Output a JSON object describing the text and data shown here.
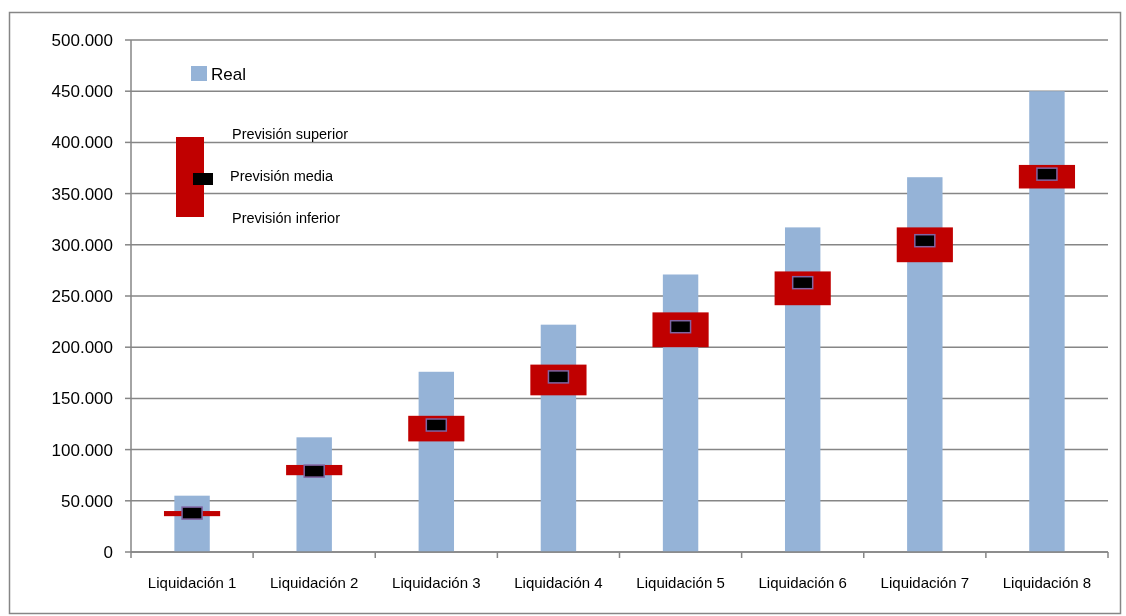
{
  "chart_data": {
    "type": "bar",
    "categories": [
      "Liquidación 1",
      "Liquidación 2",
      "Liquidación 3",
      "Liquidación 4",
      "Liquidación 5",
      "Liquidación 6",
      "Liquidación 7",
      "Liquidación 8"
    ],
    "series": [
      {
        "name": "Real",
        "color": "#95b3d7",
        "values": [
          55000,
          112000,
          176000,
          222000,
          271000,
          317000,
          366000,
          450000
        ]
      },
      {
        "color": "#c00000",
        "base": [
          35000,
          75000,
          108000,
          153000,
          200000,
          241000,
          283000,
          355000
        ],
        "values": [
          5000,
          10000,
          25000,
          30000,
          34000,
          33000,
          34000,
          23000
        ]
      },
      {
        "name": "Previsión media",
        "type": "scatter",
        "color": "#000000",
        "marker": "square",
        "values": [
          38000,
          79000,
          124000,
          171000,
          220000,
          263000,
          304000,
          369000
        ]
      }
    ],
    "ylim": [
      0,
      500000
    ],
    "yticks": [
      0,
      {
        "value": 50000,
        "label": "50.000"
      },
      {
        "value": 100000,
        "label": "100.000"
      },
      {
        "value": 150000,
        "label": "150.000"
      },
      {
        "value": 200000,
        "label": "200.000"
      },
      {
        "value": 250000,
        "label": "250.000"
      },
      {
        "value": 300000,
        "label": "300.000"
      },
      {
        "value": 350000,
        "label": "350.000"
      },
      {
        "value": 400000,
        "label": "400.000"
      },
      {
        "value": 450000,
        "label": "450.000"
      },
      {
        "value": 500000,
        "label": "500.000"
      }
    ],
    "grid": "y",
    "legend": "top left",
    "annotations": [
      "Previsión superior",
      "Previsión inferior"
    ]
  }
}
